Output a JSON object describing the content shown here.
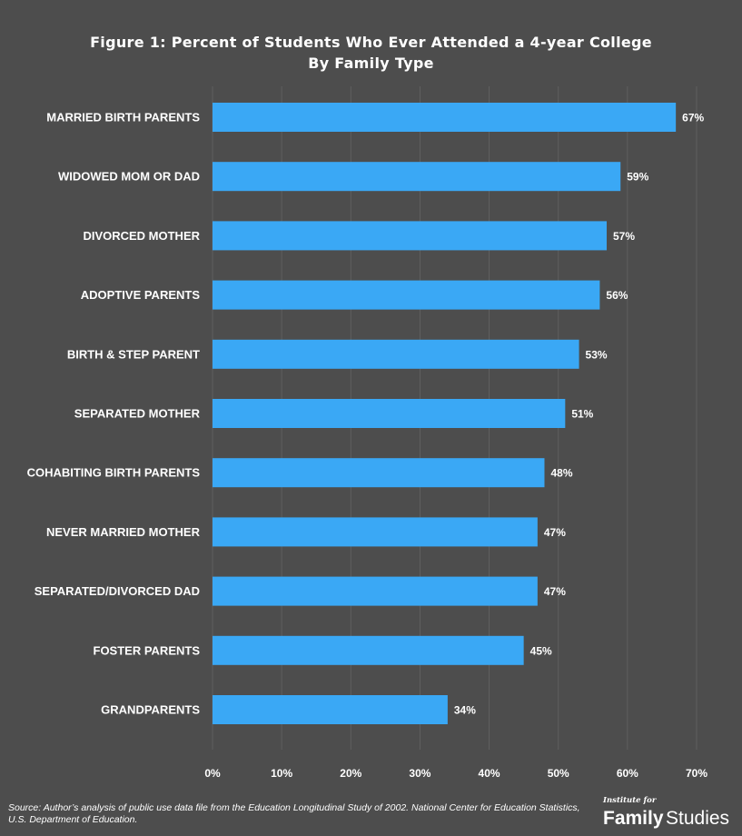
{
  "chart_data": {
    "type": "bar",
    "orientation": "horizontal",
    "title": "Figure 1: Percent of Students Who Ever Attended a 4-year College",
    "subtitle": "By Family Type",
    "categories": [
      "MARRIED BIRTH PARENTS",
      "WIDOWED MOM OR DAD",
      "DIVORCED MOTHER",
      "ADOPTIVE PARENTS",
      "BIRTH & STEP PARENT",
      "SEPARATED MOTHER",
      "COHABITING BIRTH PARENTS",
      "NEVER MARRIED MOTHER",
      "SEPARATED/DIVORCED DAD",
      "FOSTER PARENTS",
      "GRANDPARENTS"
    ],
    "values": [
      67,
      59,
      57,
      56,
      53,
      51,
      48,
      47,
      47,
      45,
      34
    ],
    "data_labels": [
      "67%",
      "59%",
      "57%",
      "56%",
      "53%",
      "51%",
      "48%",
      "47%",
      "47%",
      "45%",
      "34%"
    ],
    "xlim": [
      0,
      70
    ],
    "xticks": [
      0,
      10,
      20,
      30,
      40,
      50,
      60,
      70
    ],
    "xtick_labels": [
      "0%",
      "10%",
      "20%",
      "30%",
      "40%",
      "50%",
      "60%",
      "70%"
    ],
    "xlabel": "",
    "ylabel": "",
    "grid": true,
    "legend": "none"
  },
  "source_note": "Source: Author’s analysis of public use data file from the Education Longitudinal Study of 2002. National Center for Education Statistics, U.S. Department of Education.",
  "logo": {
    "small_text": "Institute for",
    "word1": "Family",
    "word2": "Studies"
  },
  "colors": {
    "background": "#4d4d4d",
    "bar": "#3aa8f5",
    "text": "#ffffff",
    "gridline": "#5f5f5f"
  }
}
